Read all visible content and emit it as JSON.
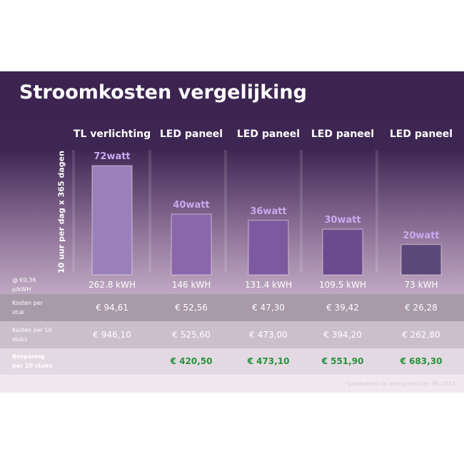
{
  "chart_data": {
    "type": "bar",
    "title": "Stroomkosten vergelijking",
    "ylabel": "10 uur per dag x 365 dagen",
    "categories": [
      "TL verlichting",
      "LED paneel",
      "LED paneel",
      "LED paneel",
      "LED paneel"
    ],
    "values": [
      72,
      40,
      36,
      30,
      20
    ],
    "value_labels": [
      "72watt",
      "40watt",
      "36watt",
      "30watt",
      "20watt"
    ],
    "colors": [
      "#9a80bb",
      "#8a66aa",
      "#7d5aa0",
      "#6c4a8e",
      "#5c4878"
    ]
  },
  "table": {
    "rows": [
      {
        "label": "@ €0,36 p/kWH",
        "cells": [
          "262.8 kWH",
          "146 kWH",
          "131.4 kWH",
          "109.5 kWH",
          "73 kWH"
        ]
      },
      {
        "label": "Kosten per stuk",
        "cells": [
          "€ 94,61",
          "€ 52,56",
          "€ 47,30",
          "€ 39,42",
          "€ 26,28"
        ]
      },
      {
        "label": "Kosten per 10 stuks",
        "cells": [
          "€ 946,10",
          "€ 525,60",
          "€ 473,00",
          "€ 394,20",
          "€ 262,80"
        ]
      },
      {
        "label": "Besparing per 10 stuks",
        "cells": [
          null,
          "€ 420,50",
          "€ 473,10",
          "€ 551,90",
          "€ 683,30"
        ]
      }
    ]
  },
  "footnote": "*gebaseerd op energieprijzen 06-2024"
}
